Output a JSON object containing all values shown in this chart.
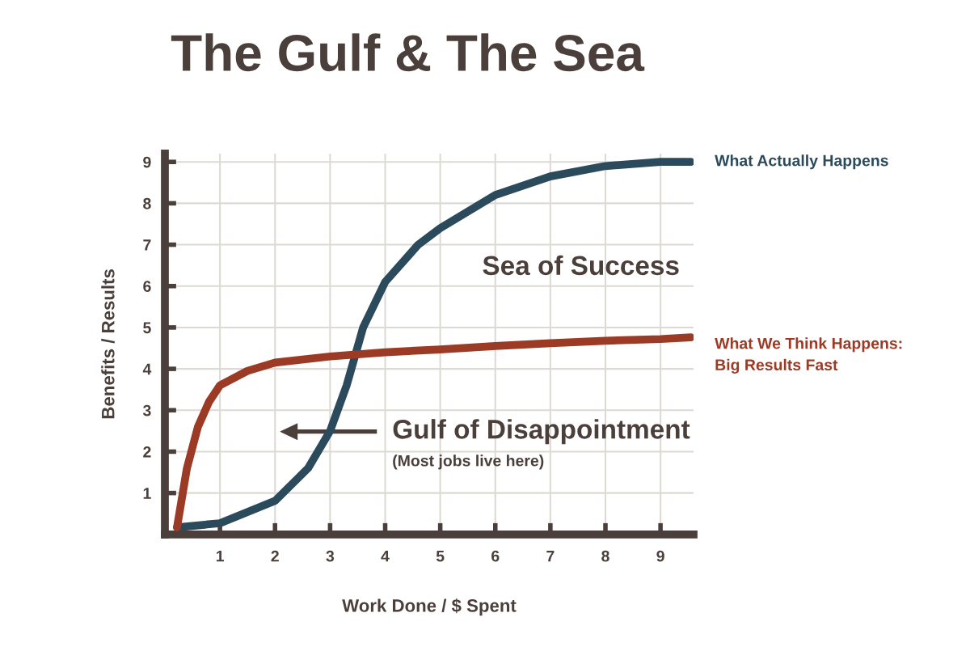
{
  "chart_data": {
    "type": "line",
    "title": "The Gulf & The Sea",
    "xlabel": "Work Done / $ Spent",
    "ylabel": "Benefits / Results",
    "xlim": [
      0,
      9.6
    ],
    "ylim": [
      0,
      9.2
    ],
    "xticks": [
      1,
      2,
      3,
      4,
      5,
      6,
      7,
      8,
      9
    ],
    "yticks": [
      1,
      2,
      3,
      4,
      5,
      6,
      7,
      8,
      9
    ],
    "grid": true,
    "legend": false,
    "marker": "none",
    "line_style": "solid",
    "series": [
      {
        "name": "What Actually Happens",
        "color": "#2b4a5c",
        "x": [
          0.22,
          1,
          2,
          2.6,
          3,
          3.3,
          3.6,
          4,
          4.6,
          5,
          6,
          7,
          8,
          9,
          9.55
        ],
        "values": [
          0.17,
          0.27,
          0.81,
          1.6,
          2.5,
          3.6,
          5.0,
          6.1,
          7.0,
          7.4,
          8.2,
          8.65,
          8.9,
          9.0,
          9.0
        ]
      },
      {
        "name": "What We Think Happens:\nBig Results Fast",
        "color": "#9b3b26",
        "x": [
          0.22,
          0.4,
          0.6,
          0.8,
          1,
          1.5,
          2,
          3,
          4,
          5,
          6,
          7,
          8,
          9,
          9.55
        ],
        "values": [
          0.17,
          1.6,
          2.6,
          3.2,
          3.6,
          3.95,
          4.15,
          4.3,
          4.4,
          4.47,
          4.55,
          4.62,
          4.68,
          4.72,
          4.76
        ]
      }
    ],
    "annotations": [
      "Sea of Success",
      "Gulf of Disappointment",
      "(Most jobs live here)"
    ]
  }
}
